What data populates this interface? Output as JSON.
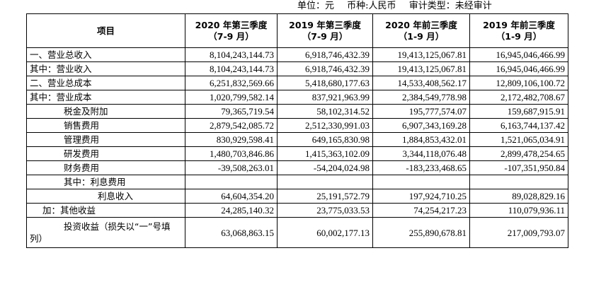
{
  "units": {
    "unit": "单位：元",
    "currency": "币种:人民币",
    "audit": "审计类型：未经审计"
  },
  "table": {
    "headers": {
      "item": "项目",
      "c1_l1": "2020 年第三季度",
      "c1_l2": "（7-9 月）",
      "c2_l1": "2019 年第三季度",
      "c2_l2": "（7-9 月）",
      "c3_l1": "2020 年前三季度",
      "c3_l2": "（1-9 月）",
      "c4_l1": "2019 年前三季度",
      "c4_l2": "（1-9 月）"
    },
    "rows": [
      {
        "label": "一、营业总收入",
        "v1": "8,104,243,144.73",
        "v2": "6,918,746,432.39",
        "v3": "19,413,125,067.81",
        "v4": "16,945,046,466.99"
      },
      {
        "label": "其中：营业收入",
        "v1": "8,104,243,144.73",
        "v2": "6,918,746,432.39",
        "v3": "19,413,125,067.81",
        "v4": "16,945,046,466.99"
      },
      {
        "label": "二、营业总成本",
        "v1": "6,251,832,569.66",
        "v2": "5,418,680,177.63",
        "v3": "14,533,408,562.17",
        "v4": "12,809,106,100.72"
      },
      {
        "label": "其中：营业成本",
        "v1": "1,020,799,582.14",
        "v2": "837,921,963.99",
        "v3": "2,384,549,778.98",
        "v4": "2,172,482,708.67"
      },
      {
        "label": "税金及附加",
        "v1": "79,365,719.54",
        "v2": "58,102,314.52",
        "v3": "195,777,574.07",
        "v4": "159,687,915.91"
      },
      {
        "label": "销售费用",
        "v1": "2,879,542,085.72",
        "v2": "2,512,330,991.03",
        "v3": "6,907,343,169.28",
        "v4": "6,163,744,137.42"
      },
      {
        "label": "管理费用",
        "v1": "830,929,598.41",
        "v2": "649,165,830.98",
        "v3": "1,884,853,432.01",
        "v4": "1,521,065,034.91"
      },
      {
        "label": "研发费用",
        "v1": "1,480,703,846.86",
        "v2": "1,415,363,102.09",
        "v3": "3,344,118,076.48",
        "v4": "2,899,478,254.65"
      },
      {
        "label": "财务费用",
        "v1": "-39,508,263.01",
        "v2": "-54,204,024.98",
        "v3": "-183,233,468.65",
        "v4": "-107,351,950.84"
      },
      {
        "label": "其中：利息费用",
        "v1": "",
        "v2": "",
        "v3": "",
        "v4": ""
      },
      {
        "label": "利息收入",
        "v1": "64,604,354.20",
        "v2": "25,191,572.79",
        "v3": "197,924,710.25",
        "v4": "89,028,829.16"
      },
      {
        "label": "加：其他收益",
        "v1": "24,285,140.32",
        "v2": "23,775,033.53",
        "v3": "74,254,217.23",
        "v4": "110,079,936.11"
      },
      {
        "label": "投资收益（损失以“一”号填列）",
        "v1": "63,068,863.15",
        "v2": "60,002,177.13",
        "v3": "255,890,678.81",
        "v4": "217,009,793.07"
      }
    ]
  }
}
